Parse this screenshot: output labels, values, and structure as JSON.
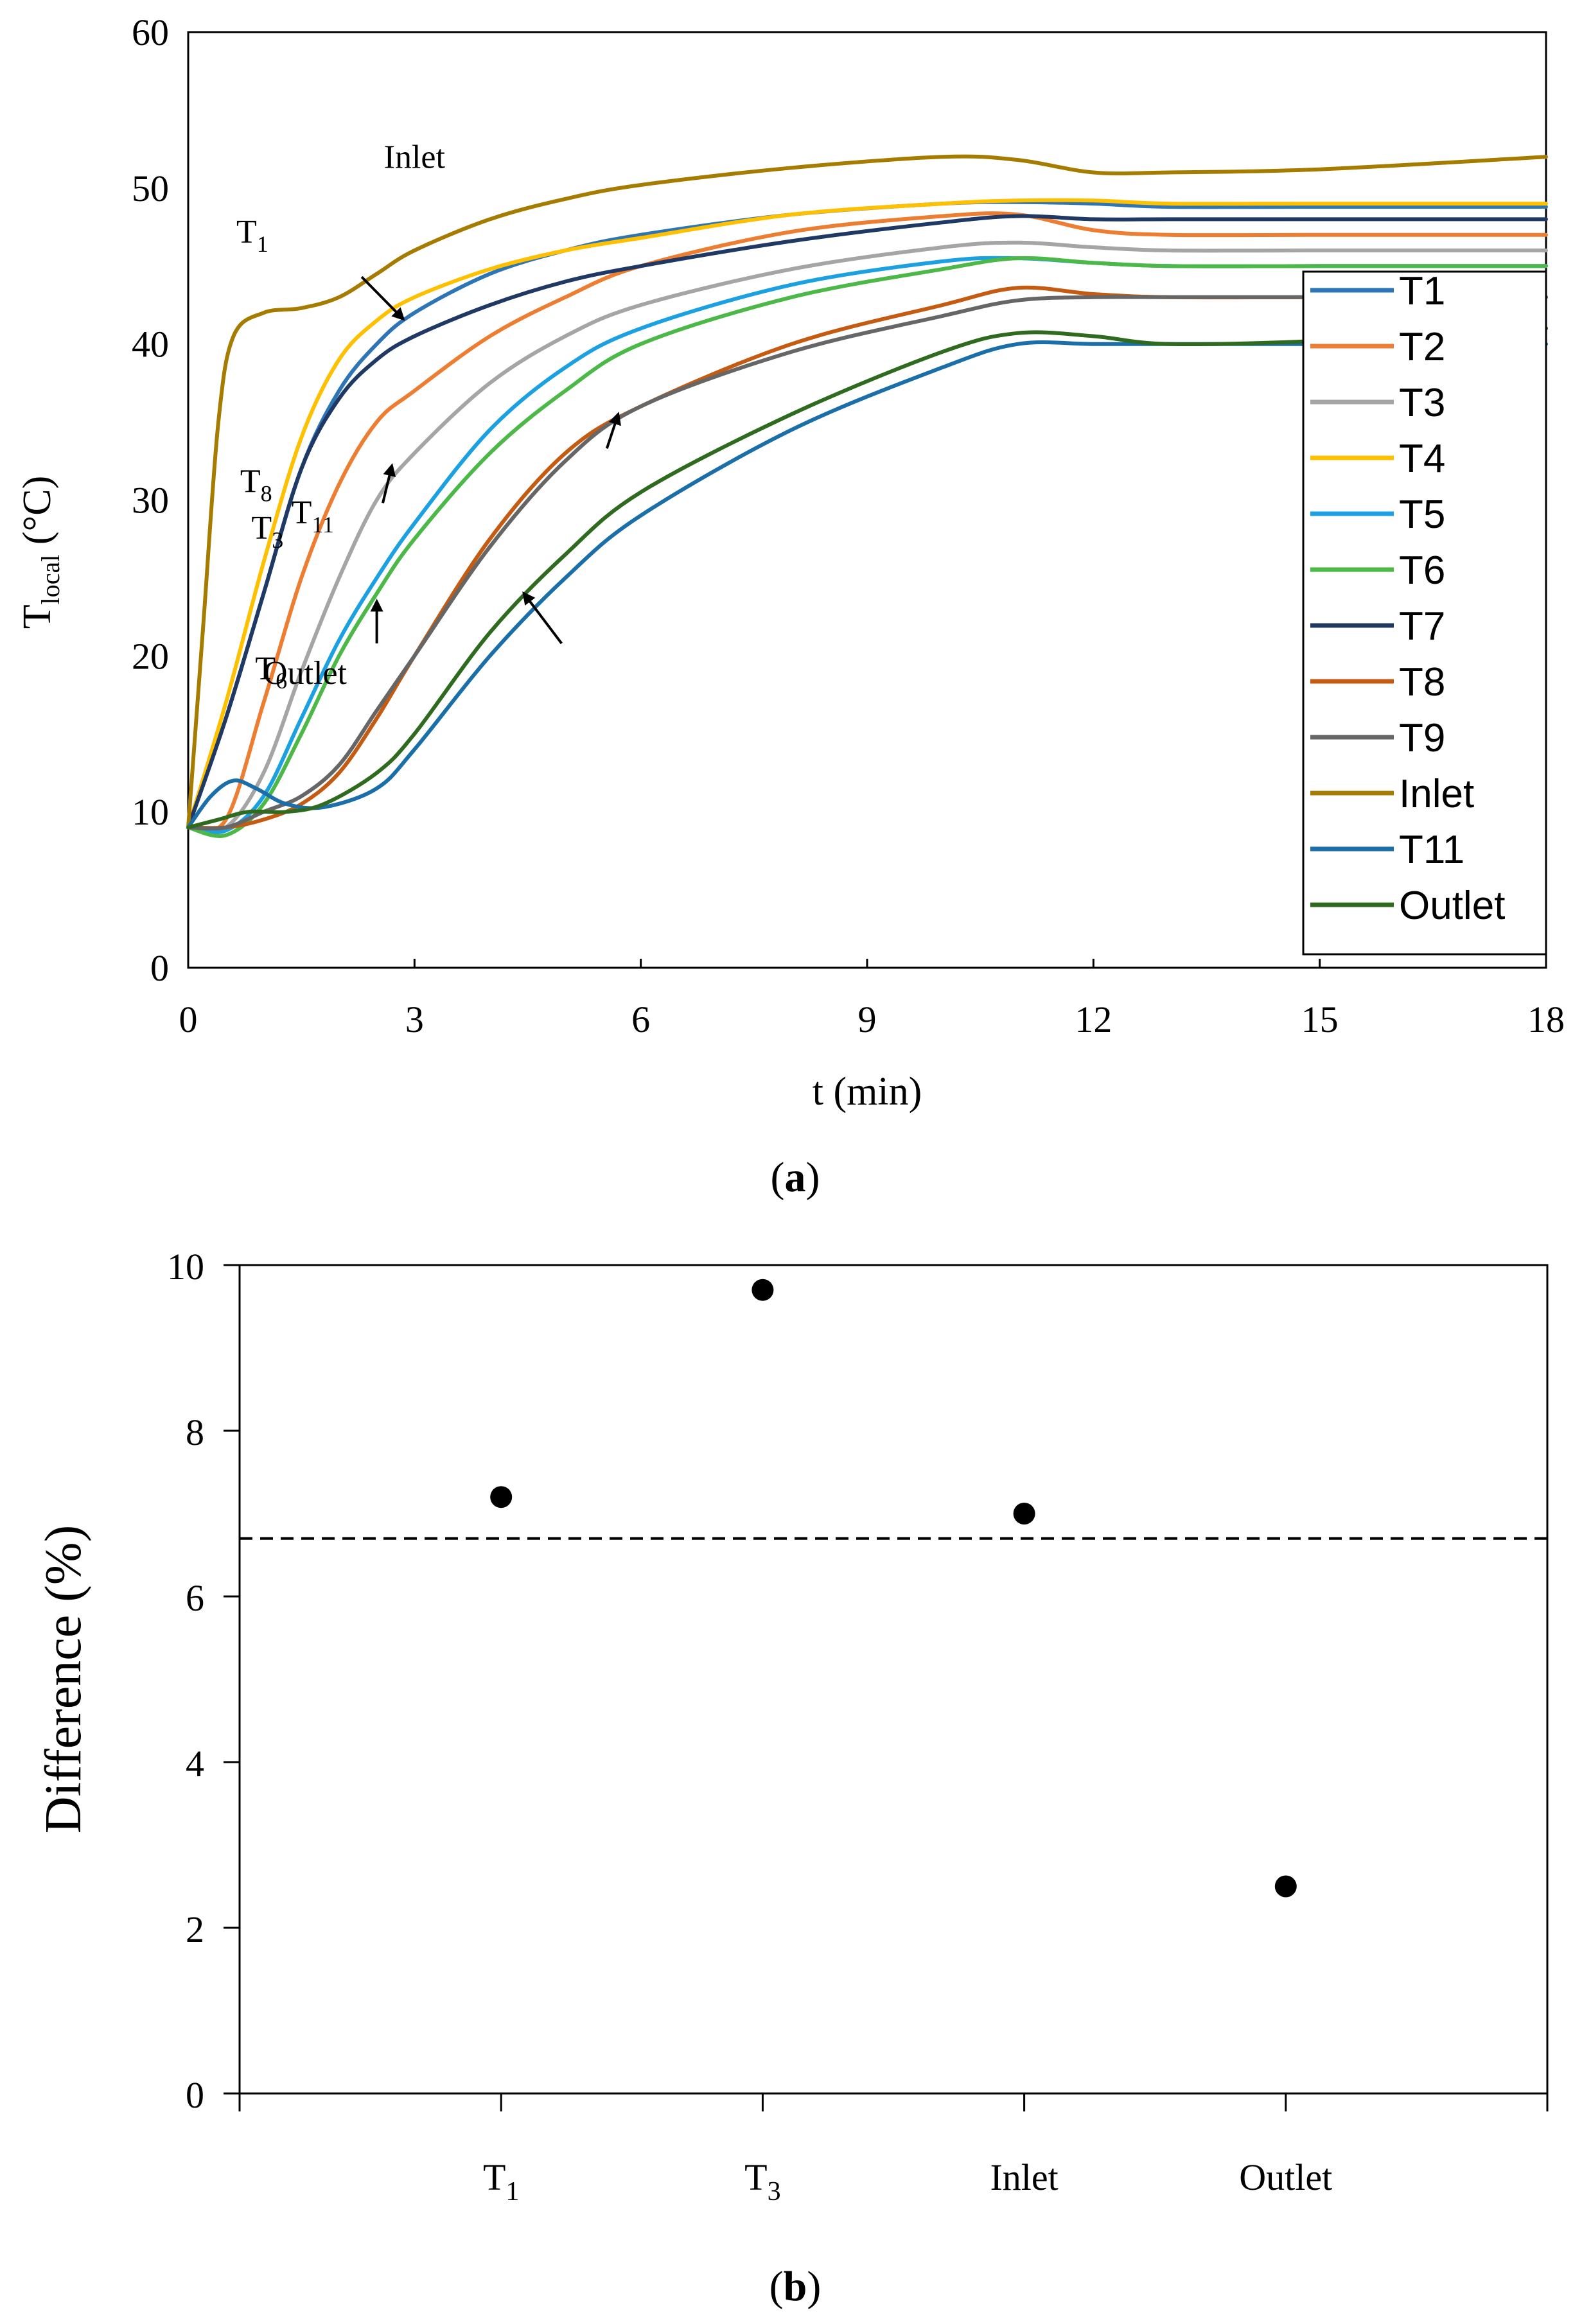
{
  "chart_data": [
    {
      "type": "line",
      "panel_label": "a",
      "xlabel": "t (min)",
      "ylabel_main": "T",
      "ylabel_sub": "local",
      "ylabel_unit": " (°C)",
      "xlim": [
        0,
        18
      ],
      "ylim": [
        0,
        60
      ],
      "xticks": [
        "0",
        "3",
        "6",
        "9",
        "12",
        "15",
        "18"
      ],
      "yticks": [
        "0",
        "10",
        "20",
        "30",
        "40",
        "50",
        "60"
      ],
      "grid": false,
      "legend_position": "right",
      "series": [
        {
          "name": "T1",
          "color": "#2e75b6",
          "x": [
            0,
            0.5,
            1,
            1.5,
            2,
            2.5,
            3,
            4,
            5,
            6,
            8,
            10,
            11,
            12,
            13,
            15,
            18
          ],
          "y": [
            9,
            16,
            24,
            32,
            37,
            40,
            42,
            44.5,
            46,
            47,
            48.3,
            49,
            49.1,
            49,
            48.8,
            48.8,
            48.8
          ]
        },
        {
          "name": "T2",
          "color": "#ed7d31",
          "x": [
            0,
            0.5,
            1,
            1.5,
            2,
            2.5,
            3,
            4,
            5,
            6,
            8,
            10,
            11,
            12,
            13,
            15,
            18
          ],
          "y": [
            9,
            9.5,
            17,
            25,
            31,
            35,
            37,
            40.5,
            43,
            45,
            47.2,
            48.2,
            48.3,
            47.3,
            47,
            47,
            47
          ]
        },
        {
          "name": "T3",
          "color": "#a5a5a5",
          "x": [
            0,
            0.5,
            1,
            1.5,
            2,
            2.5,
            3,
            4,
            5,
            6,
            8,
            10,
            11,
            12,
            13,
            15,
            18
          ],
          "y": [
            9,
            9,
            12.5,
            19,
            25,
            30,
            33,
            37.5,
            40.5,
            42.5,
            44.8,
            46.2,
            46.5,
            46.2,
            46,
            46,
            46
          ]
        },
        {
          "name": "T4",
          "color": "#ffc000",
          "x": [
            0,
            0.5,
            1,
            1.5,
            2,
            2.5,
            3,
            4,
            5,
            6,
            8,
            10,
            11,
            12,
            13,
            15,
            18
          ],
          "y": [
            9,
            17,
            26,
            34,
            39,
            41.5,
            43,
            44.8,
            46,
            46.8,
            48.3,
            49,
            49.2,
            49.2,
            49,
            49,
            49
          ]
        },
        {
          "name": "T5",
          "color": "#1ba1e2",
          "x": [
            0,
            0.5,
            1,
            1.5,
            2,
            2.5,
            3,
            4,
            5,
            6,
            8,
            10,
            11,
            12,
            13,
            15,
            18
          ],
          "y": [
            9,
            8.8,
            11,
            16,
            21,
            25,
            28.5,
            34.5,
            38.5,
            41,
            43.8,
            45.3,
            45.5,
            45.2,
            45,
            45,
            45
          ]
        },
        {
          "name": "T6",
          "color": "#4cb848",
          "x": [
            0,
            0.5,
            1,
            1.5,
            2,
            2.5,
            3,
            4,
            5,
            6,
            8,
            10,
            11,
            12,
            13,
            15,
            18
          ],
          "y": [
            9,
            8.5,
            10.5,
            15,
            20,
            24,
            27.5,
            33,
            37,
            40,
            43,
            44.8,
            45.5,
            45.2,
            45,
            45,
            45
          ]
        },
        {
          "name": "T7",
          "color": "#1f3864",
          "x": [
            0,
            0.5,
            1,
            1.5,
            2,
            2.5,
            3,
            4,
            5,
            6,
            8,
            10,
            11,
            12,
            13,
            15,
            18
          ],
          "y": [
            9,
            16,
            24,
            32,
            36.5,
            39,
            40.5,
            42.5,
            44,
            45,
            46.6,
            47.8,
            48.2,
            48,
            48,
            48,
            48
          ]
        },
        {
          "name": "T8",
          "color": "#c55a11",
          "x": [
            0,
            0.5,
            1,
            1.5,
            2,
            2.5,
            3,
            4,
            5,
            6,
            8,
            10,
            11,
            12,
            13,
            15,
            18
          ],
          "y": [
            9,
            9,
            9.5,
            10.5,
            12.5,
            16,
            20,
            27.5,
            33,
            36,
            40,
            42.5,
            43.6,
            43.2,
            43,
            43,
            43
          ]
        },
        {
          "name": "T9",
          "color": "#666666",
          "x": [
            0,
            0.5,
            1,
            1.5,
            2,
            2.5,
            3,
            4,
            5,
            6,
            8,
            10,
            11,
            12,
            13,
            15,
            18
          ],
          "y": [
            9,
            9,
            10,
            11,
            13,
            16.5,
            20,
            27,
            32.5,
            36,
            39.5,
            41.8,
            42.8,
            43,
            43,
            43,
            43
          ]
        },
        {
          "name": "Inlet",
          "color": "#a67c00",
          "x": [
            0,
            0.2,
            0.4,
            0.6,
            1,
            1.5,
            2,
            2.5,
            3,
            4,
            5,
            6,
            8,
            10,
            11,
            12,
            13,
            15,
            18
          ],
          "y": [
            9,
            22,
            35,
            40.5,
            42,
            42.3,
            43,
            44.5,
            46,
            48,
            49.3,
            50.2,
            51.3,
            52,
            51.8,
            51,
            51,
            51.2,
            52
          ]
        },
        {
          "name": "T11",
          "color": "#1b6fa8",
          "x": [
            0,
            0.3,
            0.6,
            0.9,
            1.3,
            1.8,
            2.5,
            3,
            4,
            5,
            6,
            8,
            10,
            11,
            12,
            13,
            15,
            18
          ],
          "y": [
            9,
            11,
            12,
            11.5,
            10.5,
            10.3,
            11.5,
            14,
            20,
            25,
            29,
            34.5,
            38.5,
            40,
            40,
            40,
            40,
            40
          ]
        },
        {
          "name": "Outlet",
          "color": "#2e6b1f",
          "x": [
            0,
            0.4,
            0.8,
            1.3,
            1.8,
            2.5,
            3,
            4,
            5,
            6,
            8,
            10,
            11,
            12,
            13,
            15,
            18
          ],
          "y": [
            9,
            9.5,
            10,
            10,
            10.5,
            12.5,
            15,
            21.5,
            26.5,
            30.5,
            35.5,
            39.5,
            40.7,
            40.5,
            40,
            40.2,
            41
          ]
        }
      ],
      "annotations": [
        {
          "text": "Inlet",
          "sub": "",
          "x": 1.55,
          "y": 51.3
        },
        {
          "text": "T",
          "sub": "1",
          "x": -0.6,
          "y": 46.5
        },
        {
          "text": "T",
          "sub": "3",
          "x": -0.4,
          "y": 27.5
        },
        {
          "text": "T",
          "sub": "6",
          "x": -0.35,
          "y": 18.5
        },
        {
          "text": "T",
          "sub": "8",
          "x": -0.55,
          "y": 30.5
        },
        {
          "text": "T",
          "sub": "11",
          "x": 0.2,
          "y": 28.5
        },
        {
          "text": "Outlet",
          "sub": "",
          "x": 0.1,
          "y": 18.2
        }
      ],
      "arrows": [
        {
          "x1": 2.3,
          "y1": 44.3,
          "x2": 2.85,
          "y2": 41.6
        },
        {
          "x1": 2.58,
          "y1": 29.8,
          "x2": 2.7,
          "y2": 32.2
        },
        {
          "x1": 2.5,
          "y1": 20.8,
          "x2": 2.5,
          "y2": 23.5
        },
        {
          "x1": 5.55,
          "y1": 33.3,
          "x2": 5.7,
          "y2": 35.5
        },
        {
          "x1": 4.95,
          "y1": 20.8,
          "x2": 4.45,
          "y2": 24
        }
      ]
    },
    {
      "type": "scatter",
      "panel_label": "b",
      "ylabel": "Difference (%)",
      "ylim": [
        0,
        10
      ],
      "yticks": [
        "0",
        "2",
        "4",
        "6",
        "8",
        "10"
      ],
      "categories": [
        {
          "main": "T",
          "sub": "1"
        },
        {
          "main": "T",
          "sub": "3"
        },
        {
          "main": "Inlet",
          "sub": ""
        },
        {
          "main": "Outlet",
          "sub": ""
        }
      ],
      "values": [
        7.2,
        9.7,
        7.0,
        2.5
      ],
      "reference_line": 6.7,
      "grid": false
    }
  ]
}
